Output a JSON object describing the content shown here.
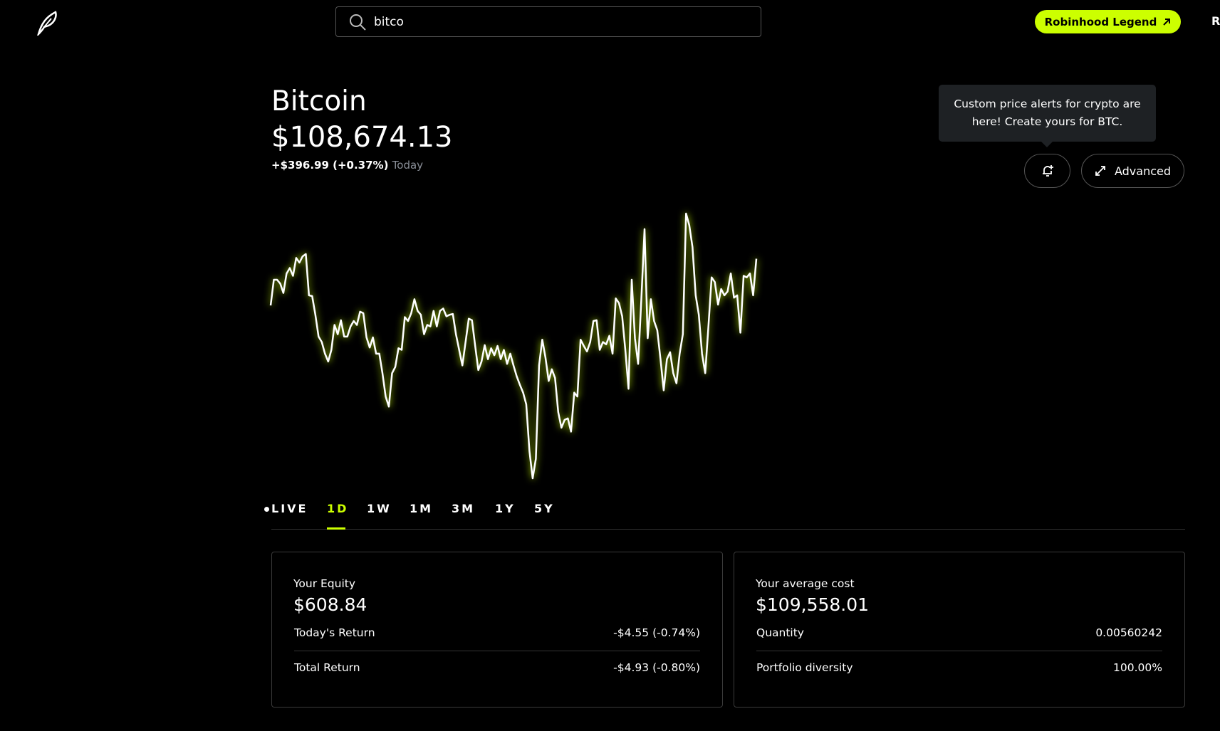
{
  "header": {
    "search_query": "bitco",
    "legend_button": "Robinhood Legend",
    "right_link": "Re"
  },
  "tooltip": "Custom price alerts for crypto are here! Create yours for BTC.",
  "advanced_button": "Advanced",
  "asset": {
    "name": "Bitcoin",
    "price": "$108,674.13",
    "change": "+$396.99 (+0.37%)",
    "change_period": "Today"
  },
  "price_chart": {
    "type": "line",
    "color": "#ffffff",
    "glow": "#ccff00",
    "values": [
      222,
      255,
      255,
      250,
      238,
      263,
      270,
      260,
      283,
      277,
      285,
      288,
      235,
      234,
      210,
      182,
      175,
      160,
      150,
      165,
      197,
      185,
      203,
      182,
      182,
      195,
      202,
      197,
      214,
      212,
      181,
      168,
      181,
      160,
      160,
      135,
      105,
      92,
      135,
      143,
      167,
      165,
      207,
      202,
      212,
      230,
      215,
      210,
      185,
      197,
      195,
      215,
      195,
      215,
      218,
      208,
      210,
      211,
      185,
      165,
      145,
      175,
      205,
      203,
      170,
      139,
      150,
      171,
      153,
      167,
      158,
      170,
      153,
      165,
      147,
      160,
      145,
      131,
      120,
      110,
      95,
      35,
      0,
      25,
      145,
      178,
      155,
      125,
      140,
      129,
      85,
      65,
      75,
      77,
      60,
      110,
      105,
      178,
      170,
      163,
      175,
      202,
      203,
      165,
      175,
      172,
      183,
      160,
      231,
      225,
      208,
      165,
      115,
      255,
      180,
      147,
      230,
      320,
      180,
      230,
      202,
      190,
      153,
      113,
      153,
      162,
      135,
      122,
      160,
      185,
      340,
      325,
      297,
      235,
      210,
      160,
      135,
      195,
      258,
      252,
      223,
      243,
      235,
      240,
      263,
      232,
      235,
      187,
      260,
      258,
      263,
      235,
      282
    ]
  },
  "tabs": [
    "LIVE",
    "1D",
    "1W",
    "1M",
    "3M",
    "1Y",
    "5Y"
  ],
  "selected_tab": 1,
  "cards": [
    {
      "label": "Your Equity",
      "value": "$608.84",
      "rows": [
        {
          "label": "Today's Return",
          "value": "-$4.55 (-0.74%)"
        },
        {
          "label": "Total Return",
          "value": "-$4.93 (-0.80%)"
        }
      ]
    },
    {
      "label": "Your average cost",
      "value": "$109,558.01",
      "rows": [
        {
          "label": "Quantity",
          "value": "0.00560242"
        },
        {
          "label": "Portfolio diversity",
          "value": "100.00%"
        }
      ]
    }
  ]
}
